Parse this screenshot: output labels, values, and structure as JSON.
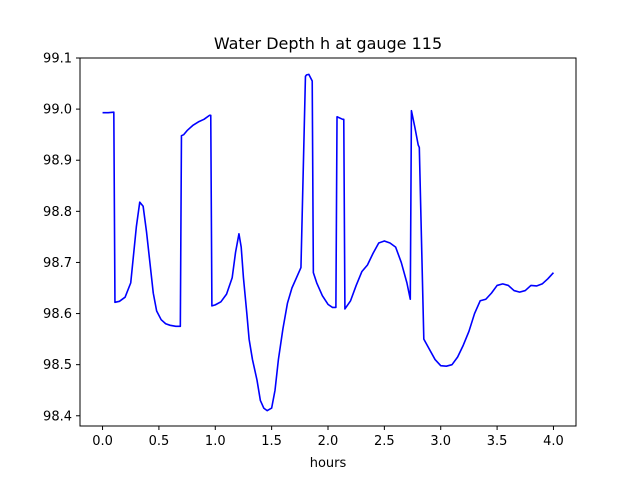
{
  "chart_data": {
    "type": "line",
    "title": "Water Depth h at gauge 115",
    "xlabel": "hours",
    "ylabel": "",
    "xlim": [
      -0.2,
      4.2
    ],
    "ylim": [
      98.38,
      99.1
    ],
    "xticks": [
      "0.0",
      "0.5",
      "1.0",
      "1.5",
      "2.0",
      "2.5",
      "3.0",
      "3.5",
      "4.0"
    ],
    "xtick_values": [
      0.0,
      0.5,
      1.0,
      1.5,
      2.0,
      2.5,
      3.0,
      3.5,
      4.0
    ],
    "yticks": [
      "98.4",
      "98.5",
      "98.6",
      "98.7",
      "98.8",
      "98.9",
      "99.0",
      "99.1"
    ],
    "ytick_values": [
      98.4,
      98.5,
      98.6,
      98.7,
      98.8,
      98.9,
      99.0,
      99.1
    ],
    "grid": false,
    "line_color": "#0000ff",
    "series": [
      {
        "x": [
          0.0,
          0.05,
          0.1,
          0.11,
          0.15,
          0.2,
          0.25,
          0.3,
          0.33,
          0.36,
          0.39,
          0.42,
          0.45,
          0.48,
          0.52,
          0.56,
          0.6,
          0.65,
          0.69,
          0.7,
          0.72,
          0.75,
          0.8,
          0.85,
          0.9,
          0.95,
          0.96,
          0.97,
          1.0,
          1.05,
          1.1,
          1.15,
          1.18,
          1.21,
          1.23,
          1.25,
          1.28,
          1.3,
          1.33,
          1.37,
          1.4,
          1.43,
          1.46,
          1.5,
          1.53,
          1.56,
          1.6,
          1.64,
          1.68,
          1.72,
          1.76,
          1.8,
          1.81,
          1.83,
          1.86,
          1.87,
          1.9,
          1.95,
          2.0,
          2.04,
          2.07,
          2.08,
          2.13,
          2.14,
          2.15,
          2.2,
          2.25,
          2.3,
          2.35,
          2.4,
          2.45,
          2.5,
          2.55,
          2.6,
          2.65,
          2.7,
          2.73,
          2.74,
          2.77,
          2.8,
          2.81,
          2.85,
          2.9,
          2.95,
          3.0,
          3.05,
          3.1,
          3.15,
          3.2,
          3.25,
          3.3,
          3.35,
          3.4,
          3.45,
          3.5,
          3.55,
          3.6,
          3.65,
          3.7,
          3.75,
          3.8,
          3.85,
          3.9,
          3.95,
          4.0
        ],
        "y": [
          98.993,
          98.993,
          98.994,
          98.622,
          98.624,
          98.632,
          98.66,
          98.77,
          98.818,
          98.81,
          98.76,
          98.7,
          98.64,
          98.605,
          98.588,
          98.58,
          98.577,
          98.575,
          98.575,
          98.948,
          98.95,
          98.958,
          98.968,
          98.975,
          98.98,
          98.988,
          98.988,
          98.615,
          98.617,
          98.623,
          98.638,
          98.67,
          98.72,
          98.756,
          98.73,
          98.67,
          98.6,
          98.55,
          98.51,
          98.47,
          98.43,
          98.415,
          98.41,
          98.415,
          98.45,
          98.51,
          98.57,
          98.62,
          98.65,
          98.67,
          98.69,
          99.064,
          99.067,
          99.068,
          99.055,
          98.68,
          98.66,
          98.635,
          98.618,
          98.612,
          98.612,
          98.985,
          98.98,
          98.98,
          98.609,
          98.625,
          98.655,
          98.682,
          98.695,
          98.718,
          98.738,
          98.742,
          98.738,
          98.73,
          98.7,
          98.66,
          98.628,
          98.997,
          98.965,
          98.93,
          98.925,
          98.55,
          98.53,
          98.51,
          98.498,
          98.497,
          98.5,
          98.515,
          98.538,
          98.565,
          98.6,
          98.625,
          98.628,
          98.64,
          98.655,
          98.658,
          98.655,
          98.645,
          98.642,
          98.645,
          98.655,
          98.654,
          98.658,
          98.668,
          98.68
        ]
      }
    ]
  }
}
